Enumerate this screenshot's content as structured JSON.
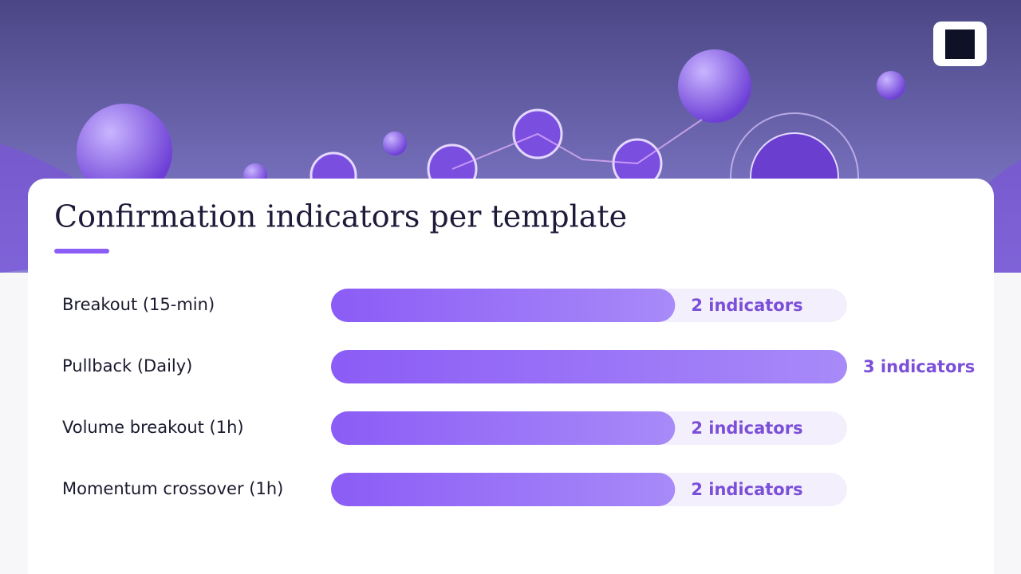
{
  "chart_data": {
    "type": "bar",
    "orientation": "horizontal",
    "title": "Confirmation indicators per template",
    "categories": [
      "Breakout (15-min)",
      "Pullback (Daily)",
      "Volume breakout (1h)",
      "Momentum crossover (1h)"
    ],
    "values": [
      2,
      3,
      2,
      2
    ],
    "value_labels": [
      "2 indicators",
      "3 indicators",
      "2 indicators",
      "2 indicators"
    ],
    "xlim": [
      0,
      3
    ],
    "color": "#8b5cf6"
  }
}
